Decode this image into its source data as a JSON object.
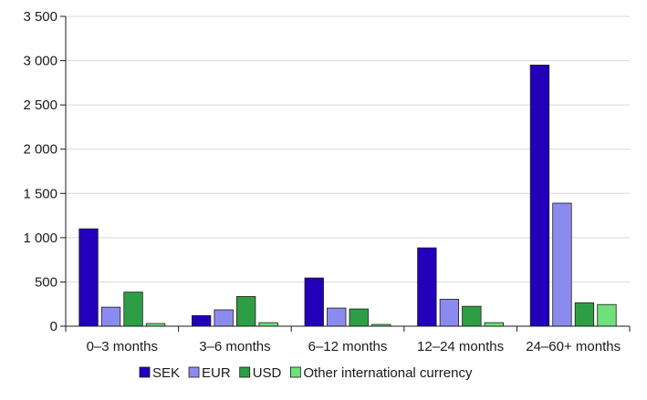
{
  "chart_data": {
    "type": "bar",
    "title": "",
    "xlabel": "",
    "ylabel": "",
    "categories": [
      "0–3 months",
      "3–6 months",
      "6–12 months",
      "12–24 months",
      "24–60+ months"
    ],
    "series": [
      {
        "name": "SEK",
        "color": "#2200bb",
        "values": [
          1100,
          120,
          545,
          885,
          2950
        ]
      },
      {
        "name": "EUR",
        "color": "#8b8bef",
        "values": [
          215,
          185,
          205,
          305,
          1390
        ]
      },
      {
        "name": "USD",
        "color": "#2e9e45",
        "values": [
          385,
          335,
          195,
          225,
          265
        ]
      },
      {
        "name": "Other international currency",
        "color": "#6fe07a",
        "values": [
          30,
          40,
          20,
          40,
          245
        ]
      }
    ],
    "ylim": [
      0,
      3500
    ],
    "yticks": [
      0,
      500,
      1000,
      1500,
      2000,
      2500,
      3000,
      3500
    ],
    "ytick_labels": [
      "0",
      "500",
      "1 000",
      "1 500",
      "2 000",
      "2 500",
      "3 000",
      "3 500"
    ],
    "grid": true,
    "legend_position": "bottom"
  }
}
